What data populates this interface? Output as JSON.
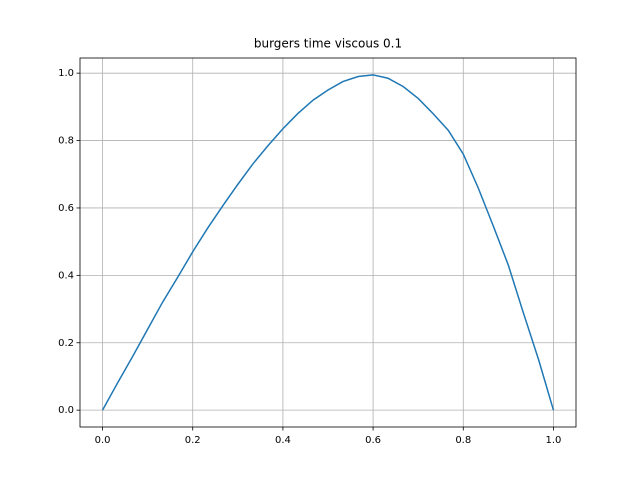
{
  "chart_data": {
    "type": "line",
    "title": "burgers time viscous 0.1",
    "x": [
      0,
      0.033,
      0.067,
      0.1,
      0.133,
      0.167,
      0.2,
      0.233,
      0.267,
      0.3,
      0.333,
      0.367,
      0.4,
      0.433,
      0.467,
      0.5,
      0.533,
      0.567,
      0.6,
      0.633,
      0.667,
      0.7,
      0.733,
      0.767,
      0.8,
      0.833,
      0.867,
      0.9,
      0.933,
      0.967,
      1.0
    ],
    "series": [
      {
        "color": "#1f77b4",
        "values": [
          0,
          0.08,
          0.16,
          0.24,
          0.32,
          0.395,
          0.47,
          0.54,
          0.607,
          0.67,
          0.73,
          0.785,
          0.835,
          0.88,
          0.92,
          0.95,
          0.975,
          0.99,
          0.995,
          0.985,
          0.96,
          0.925,
          0.88,
          0.83,
          0.76,
          0.66,
          0.545,
          0.43,
          0.29,
          0.15,
          0
        ]
      }
    ],
    "xlim": [
      -0.05,
      1.05
    ],
    "ylim": [
      -0.05,
      1.045
    ],
    "xticks": [
      {
        "value": 0,
        "label": "0.0"
      },
      {
        "value": 0.2,
        "label": "0.2"
      },
      {
        "value": 0.4,
        "label": "0.4"
      },
      {
        "value": 0.6,
        "label": "0.6"
      },
      {
        "value": 0.8,
        "label": "0.8"
      },
      {
        "value": 1,
        "label": "1.0"
      }
    ],
    "yticks": [
      {
        "value": 0,
        "label": "0.0"
      },
      {
        "value": 0.2,
        "label": "0.2"
      },
      {
        "value": 0.4,
        "label": "0.4"
      },
      {
        "value": 0.6,
        "label": "0.6"
      },
      {
        "value": 0.8,
        "label": "0.8"
      },
      {
        "value": 1,
        "label": "1.0"
      }
    ],
    "grid": true
  }
}
